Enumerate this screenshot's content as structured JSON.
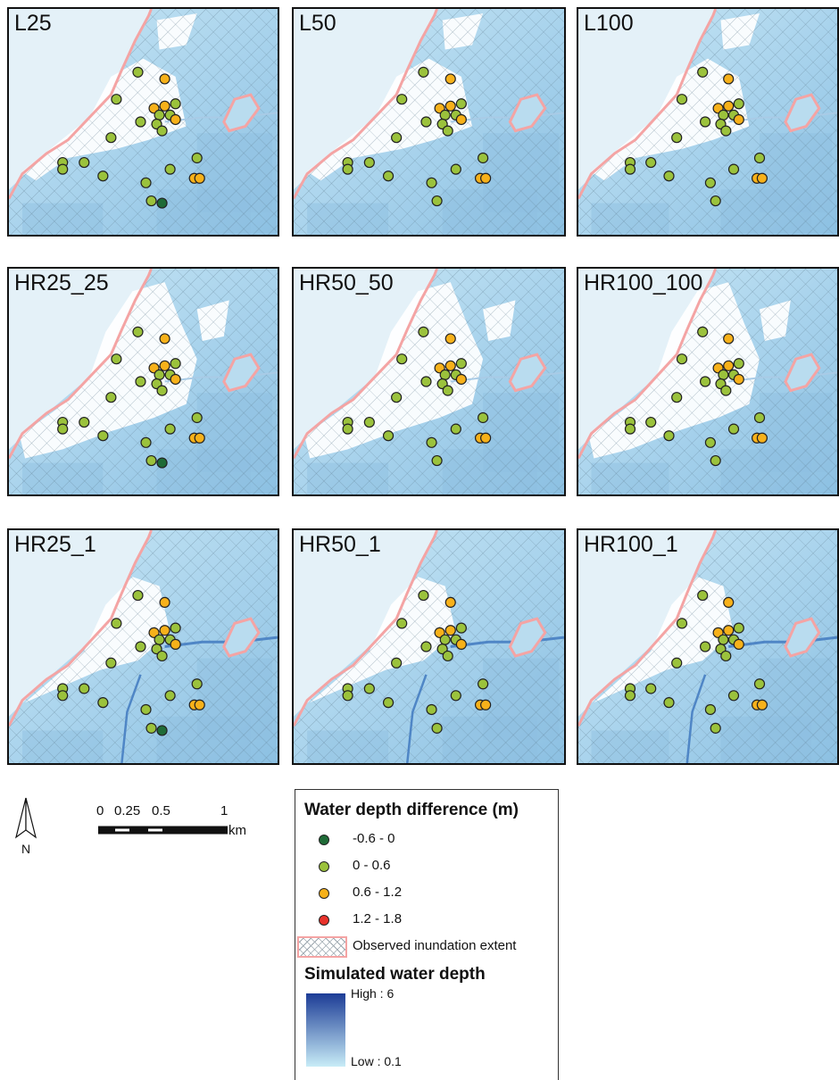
{
  "panels": [
    {
      "id": "L25",
      "title": "L25",
      "variant": "L",
      "neg": true
    },
    {
      "id": "L50",
      "title": "L50",
      "variant": "L",
      "neg": false
    },
    {
      "id": "L100",
      "title": "L100",
      "variant": "L",
      "neg": false
    },
    {
      "id": "HR25_25",
      "title": "HR25_25",
      "variant": "HRA",
      "neg": true
    },
    {
      "id": "HR50_50",
      "title": "HR50_50",
      "variant": "HRA",
      "neg": false
    },
    {
      "id": "HR100_100",
      "title": "HR100_100",
      "variant": "HRA",
      "neg": false
    },
    {
      "id": "HR25_1",
      "title": "HR25_1",
      "variant": "HR1",
      "neg": true
    },
    {
      "id": "HR50_1",
      "title": "HR50_1",
      "variant": "HR1",
      "neg": false
    },
    {
      "id": "HR100_1",
      "title": "HR100_1",
      "variant": "HR1",
      "neg": false
    }
  ],
  "north": {
    "label": "N"
  },
  "scale": {
    "ticks": [
      "0",
      "0.25",
      "0.5",
      "1"
    ],
    "unit": "km"
  },
  "legend": {
    "title1": "Water depth difference (m)",
    "classes": [
      {
        "label": "-0.6 - 0",
        "color": "#1f6b37"
      },
      {
        "label": "0 - 0.6",
        "color": "#9bc23c"
      },
      {
        "label": "0.6 - 1.2",
        "color": "#f7b11a"
      },
      {
        "label": "1.2 - 1.8",
        "color": "#e8322b"
      }
    ],
    "observed_label": "Observed inundation extent",
    "title2": "Simulated water depth",
    "high_label": "High : 6",
    "low_label": "Low : 0.1",
    "ramp_high_color": "#1c3c96",
    "ramp_low_color": "#c8ecf7"
  },
  "colors": {
    "outline": "#f4a4a4",
    "hatch": "#5d7a8c",
    "water_light": "#b9dcef",
    "water_mid": "#92c6e4",
    "land_white": "#ffffff"
  }
}
